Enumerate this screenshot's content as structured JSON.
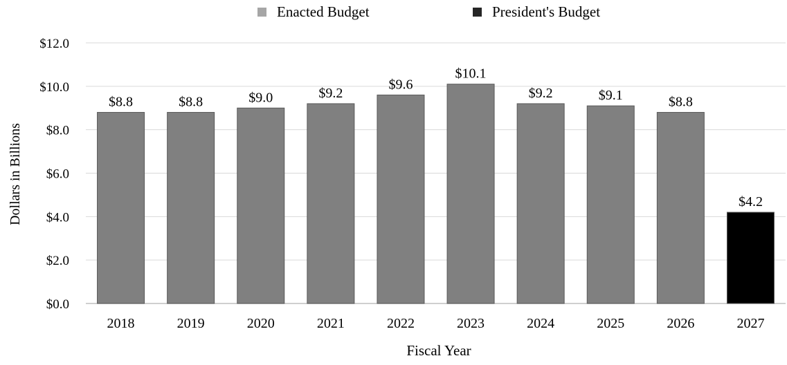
{
  "chart_data": {
    "type": "bar",
    "xlabel": "Fiscal Year",
    "ylabel": "Dollars in Billions",
    "ylim": [
      0,
      12
    ],
    "yticks": [
      0,
      2,
      4,
      6,
      8,
      10,
      12
    ],
    "ytick_labels": [
      "$0.0",
      "$2.0",
      "$4.0",
      "$6.0",
      "$8.0",
      "$10.0",
      "$12.0"
    ],
    "grid": "horizontal",
    "legend_position": "top-center",
    "categories": [
      "2018",
      "2019",
      "2020",
      "2021",
      "2022",
      "2023",
      "2024",
      "2025",
      "2026",
      "2027"
    ],
    "values": [
      8.8,
      8.8,
      9.0,
      9.2,
      9.6,
      10.1,
      9.2,
      9.1,
      8.8,
      4.2
    ],
    "data_labels": [
      "$8.8",
      "$8.8",
      "$9.0",
      "$9.2",
      "$9.6",
      "$10.1",
      "$9.2",
      "$9.1",
      "$8.8",
      "$4.2"
    ],
    "series_index": [
      0,
      0,
      0,
      0,
      0,
      0,
      0,
      0,
      0,
      1
    ],
    "series": [
      {
        "name": "Enacted Budget",
        "color": "#808080",
        "legend_color": "#a6a6a6"
      },
      {
        "name": "President's Budget",
        "color": "#000000",
        "legend_color": "#262626"
      }
    ],
    "gridline_color": "#d9d9d9",
    "axis_color": "#bfbfbf"
  }
}
